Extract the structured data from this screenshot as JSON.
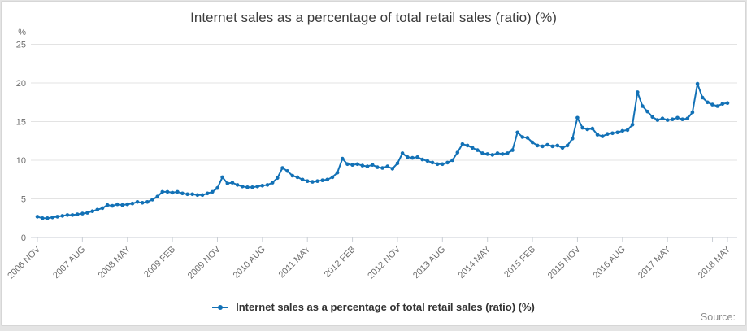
{
  "chart_data": {
    "type": "line",
    "title": "Internet sales as a percentage of total retail sales (ratio) (%)",
    "legend": "Internet sales as a percentage of total retail sales (ratio) (%)",
    "y_unit": "%",
    "ylim": [
      0,
      25
    ],
    "y_ticks": [
      0,
      5,
      10,
      15,
      20,
      25
    ],
    "grid": true,
    "legend_position": "bottom-center",
    "series_color": "#1271b6",
    "x_start": "2006 NOV",
    "x_end": "2018 MAY",
    "frequency": "monthly",
    "x_ticks": [
      {
        "i": 0,
        "label": "2006 NOV"
      },
      {
        "i": 9,
        "label": "2007 AUG"
      },
      {
        "i": 18,
        "label": "2008 MAY"
      },
      {
        "i": 27,
        "label": "2009 FEB"
      },
      {
        "i": 36,
        "label": "2009 NOV"
      },
      {
        "i": 45,
        "label": "2010 AUG"
      },
      {
        "i": 54,
        "label": "2011 MAY"
      },
      {
        "i": 63,
        "label": "2012 FEB"
      },
      {
        "i": 72,
        "label": "2012 NOV"
      },
      {
        "i": 81,
        "label": "2013 AUG"
      },
      {
        "i": 90,
        "label": "2014 MAY"
      },
      {
        "i": 99,
        "label": "2015 FEB"
      },
      {
        "i": 108,
        "label": "2015 NOV"
      },
      {
        "i": 117,
        "label": "2016 AUG"
      },
      {
        "i": 126,
        "label": "2017 MAY"
      },
      {
        "i": 135,
        "label": ""
      },
      {
        "i": 138,
        "label": "2018 MAY"
      }
    ],
    "values": [
      2.7,
      2.5,
      2.5,
      2.6,
      2.7,
      2.8,
      2.9,
      2.9,
      3.0,
      3.1,
      3.2,
      3.4,
      3.6,
      3.8,
      4.2,
      4.1,
      4.3,
      4.2,
      4.3,
      4.4,
      4.6,
      4.5,
      4.6,
      4.9,
      5.3,
      5.9,
      5.9,
      5.8,
      5.9,
      5.7,
      5.6,
      5.6,
      5.5,
      5.5,
      5.7,
      5.9,
      6.4,
      7.8,
      7.0,
      7.1,
      6.8,
      6.6,
      6.5,
      6.5,
      6.6,
      6.7,
      6.8,
      7.1,
      7.7,
      9.0,
      8.6,
      8.0,
      7.8,
      7.5,
      7.3,
      7.2,
      7.3,
      7.4,
      7.5,
      7.8,
      8.4,
      10.2,
      9.5,
      9.4,
      9.5,
      9.3,
      9.2,
      9.4,
      9.1,
      9.0,
      9.2,
      8.9,
      9.6,
      10.9,
      10.4,
      10.3,
      10.4,
      10.1,
      9.9,
      9.7,
      9.5,
      9.5,
      9.7,
      10.0,
      11.0,
      12.1,
      11.9,
      11.6,
      11.3,
      10.9,
      10.8,
      10.7,
      10.9,
      10.8,
      10.9,
      11.3,
      13.6,
      13.0,
      12.9,
      12.3,
      11.9,
      11.8,
      12.0,
      11.8,
      11.9,
      11.6,
      11.9,
      12.8,
      15.5,
      14.2,
      14.0,
      14.1,
      13.3,
      13.1,
      13.4,
      13.5,
      13.6,
      13.8,
      13.9,
      14.6,
      18.8,
      17.0,
      16.3,
      15.6,
      15.2,
      15.4,
      15.2,
      15.3,
      15.5,
      15.3,
      15.4,
      16.2,
      19.9,
      18.1,
      17.5,
      17.2,
      17.0,
      17.3,
      17.4
    ]
  },
  "footer": {
    "source_label": "Source:"
  }
}
